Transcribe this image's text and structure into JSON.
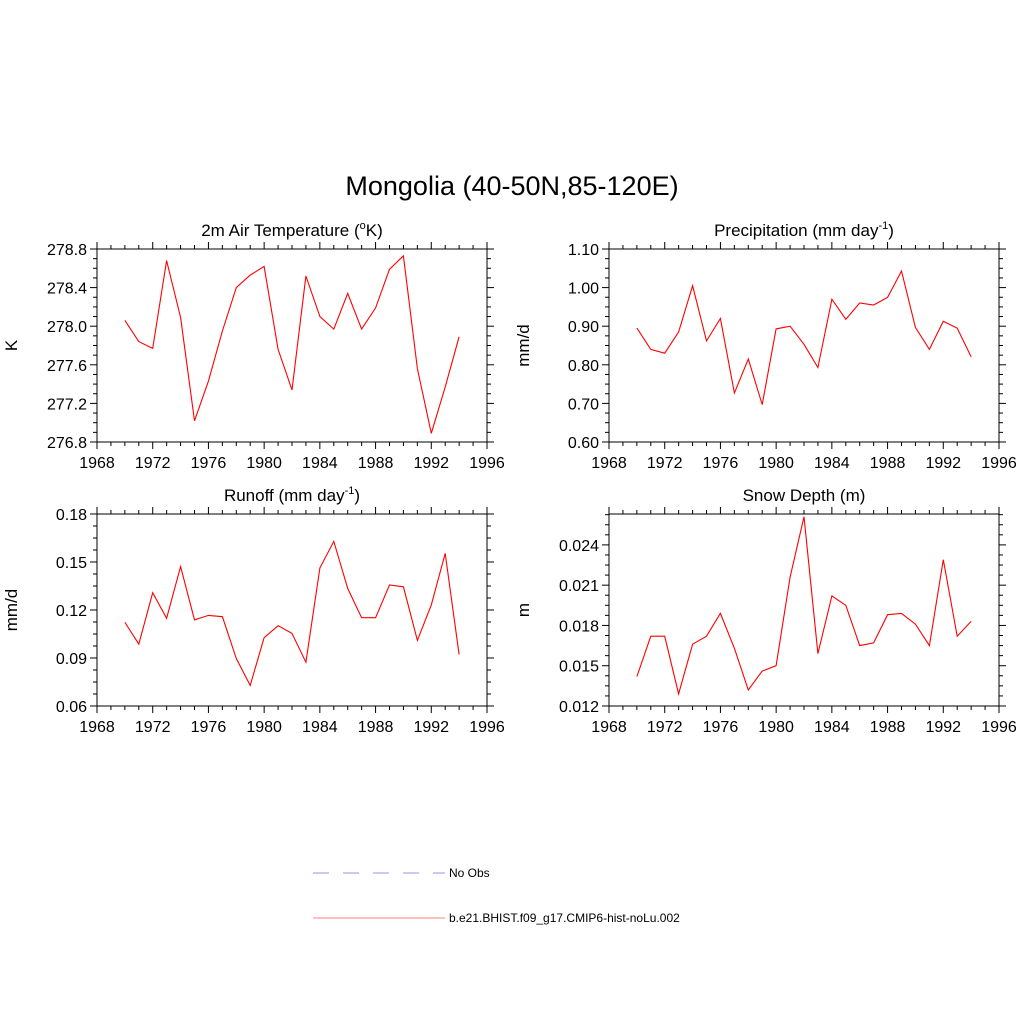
{
  "figure": {
    "title": "Mongolia (40-50N,85-120E)"
  },
  "chart_data": [
    {
      "id": "temp",
      "type": "line",
      "title": "2m Air Temperature (",
      "title_sup": "o",
      "title_after": "K)",
      "ylabel": "K",
      "xlim": [
        1968,
        1996
      ],
      "ylim": [
        276.8,
        278.8
      ],
      "xticks": [
        1968,
        1972,
        1976,
        1980,
        1984,
        1988,
        1992,
        1996
      ],
      "yticks": [
        "276.8",
        "277.2",
        "277.6",
        "278.0",
        "278.4",
        "278.8"
      ],
      "x": [
        1970,
        1971,
        1972,
        1973,
        1974,
        1975,
        1976,
        1977,
        1978,
        1979,
        1980,
        1981,
        1982,
        1983,
        1984,
        1985,
        1986,
        1987,
        1988,
        1989,
        1990,
        1991,
        1992,
        1993,
        1994
      ],
      "values": [
        278.06,
        277.84,
        277.77,
        278.68,
        278.09,
        277.02,
        277.43,
        277.95,
        278.4,
        278.53,
        278.62,
        277.76,
        277.34,
        278.52,
        278.1,
        277.97,
        278.34,
        277.97,
        278.19,
        278.59,
        278.73,
        277.56,
        276.89,
        277.37,
        277.89
      ]
    },
    {
      "id": "precip",
      "type": "line",
      "title": "Precipitation (mm day",
      "title_sup": "-1",
      "title_after": ")",
      "ylabel": "mm/d",
      "xlim": [
        1968,
        1996
      ],
      "ylim": [
        0.6,
        1.1
      ],
      "xticks": [
        1968,
        1972,
        1976,
        1980,
        1984,
        1988,
        1992,
        1996
      ],
      "yticks": [
        "0.60",
        "0.70",
        "0.80",
        "0.90",
        "1.00",
        "1.10"
      ],
      "x": [
        1970,
        1971,
        1972,
        1973,
        1974,
        1975,
        1976,
        1977,
        1978,
        1979,
        1980,
        1981,
        1982,
        1983,
        1984,
        1985,
        1986,
        1987,
        1988,
        1989,
        1990,
        1991,
        1992,
        1993,
        1994
      ],
      "values": [
        0.895,
        0.84,
        0.83,
        0.885,
        1.005,
        0.862,
        0.92,
        0.727,
        0.815,
        0.697,
        0.893,
        0.9,
        0.853,
        0.793,
        0.97,
        0.918,
        0.96,
        0.955,
        0.975,
        1.043,
        0.897,
        0.84,
        0.913,
        0.895,
        0.821
      ]
    },
    {
      "id": "runoff",
      "type": "line",
      "title": "Runoff (mm day",
      "title_sup": "-1",
      "title_after": ")",
      "ylabel": "mm/d",
      "xlim": [
        1968,
        1996
      ],
      "ylim": [
        0.06,
        0.18
      ],
      "xticks": [
        1968,
        1972,
        1976,
        1980,
        1984,
        1988,
        1992,
        1996
      ],
      "yticks": [
        "0.06",
        "0.09",
        "0.12",
        "0.15",
        "0.18"
      ],
      "x": [
        1970,
        1971,
        1972,
        1973,
        1974,
        1975,
        1976,
        1977,
        1978,
        1979,
        1980,
        1981,
        1982,
        1983,
        1984,
        1985,
        1986,
        1987,
        1988,
        1989,
        1990,
        1991,
        1992,
        1993,
        1994
      ],
      "values": [
        0.1123,
        0.0987,
        0.1308,
        0.1148,
        0.1471,
        0.1138,
        0.1166,
        0.1158,
        0.0897,
        0.0729,
        0.1027,
        0.1102,
        0.1054,
        0.0874,
        0.1463,
        0.1629,
        0.1335,
        0.1152,
        0.1152,
        0.1356,
        0.1345,
        0.101,
        0.1232,
        0.1554,
        0.0922
      ]
    },
    {
      "id": "snow",
      "type": "line",
      "title": "Snow Depth (m)",
      "title_sup": "",
      "title_after": "",
      "ylabel": "m",
      "xlim": [
        1968,
        1996
      ],
      "ylim": [
        0.012,
        0.0263
      ],
      "xticks": [
        1968,
        1972,
        1976,
        1980,
        1984,
        1988,
        1992,
        1996
      ],
      "yticks": [
        "0.012",
        "0.015",
        "0.018",
        "0.021",
        "0.024"
      ],
      "x": [
        1970,
        1971,
        1972,
        1973,
        1974,
        1975,
        1976,
        1977,
        1978,
        1979,
        1980,
        1981,
        1982,
        1983,
        1984,
        1985,
        1986,
        1987,
        1988,
        1989,
        1990,
        1991,
        1992,
        1993,
        1994
      ],
      "values": [
        0.0142,
        0.0172,
        0.0172,
        0.0129,
        0.0166,
        0.0172,
        0.0189,
        0.0163,
        0.0132,
        0.0146,
        0.015,
        0.0216,
        0.0261,
        0.0159,
        0.0202,
        0.0195,
        0.0165,
        0.0167,
        0.0188,
        0.0189,
        0.0181,
        0.0165,
        0.0229,
        0.0172,
        0.0183
      ]
    }
  ],
  "legend": {
    "items": [
      {
        "label": "No Obs",
        "style": "dashed",
        "color": "#aaaaee"
      },
      {
        "label": "b.e21.BHIST.f09_g17.CMIP6-hist-noLu.002",
        "style": "solid",
        "color": "#ff9999"
      }
    ]
  },
  "colors": {
    "series": "#ff0000",
    "axes": "#000000"
  }
}
